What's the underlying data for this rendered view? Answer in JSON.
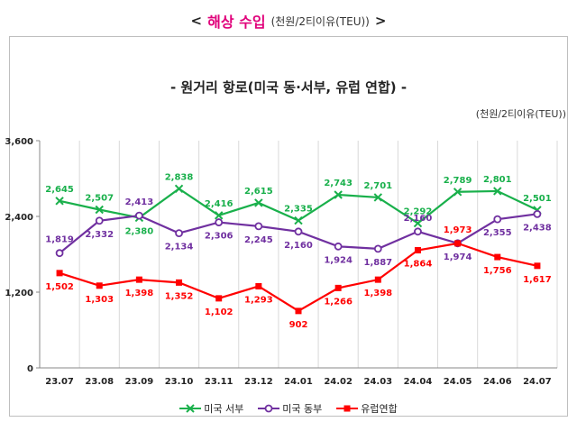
{
  "header": {
    "left_arrow": "<",
    "title": "해상 수입",
    "unit": "(천원/2티이유(TEU))",
    "right_arrow": ">"
  },
  "chart_data": {
    "type": "line",
    "title": "- 원거리 항로(미국 동·서부, 유럽 연합) -",
    "unit_label": "(천원/2티이유(TEU))",
    "categories": [
      "23.07",
      "23.08",
      "23.09",
      "23.10",
      "23.11",
      "23.12",
      "24.01",
      "24.02",
      "24.03",
      "24.04",
      "24.05",
      "24.06",
      "24.07"
    ],
    "y_ticks": [
      "0",
      "1,200",
      "2,400",
      "3,600"
    ],
    "ylim": [
      0,
      3600
    ],
    "grid": "vertical",
    "legend_position": "bottom",
    "series": [
      {
        "name": "미국 서부",
        "color": "#19b04b",
        "marker": "x",
        "values": [
          2645,
          2507,
          2380,
          2838,
          2416,
          2615,
          2335,
          2743,
          2701,
          2292,
          2789,
          2801,
          2501
        ],
        "labels": [
          "2,645",
          "2,507",
          "2,380",
          "2,838",
          "2,416",
          "2,615",
          "2,335",
          "2,743",
          "2,701",
          "2,292",
          "2,789",
          "2,801",
          "2,501"
        ]
      },
      {
        "name": "미국 동부",
        "color": "#7030a0",
        "marker": "circle",
        "values": [
          1819,
          2332,
          2413,
          2134,
          2306,
          2245,
          2160,
          1924,
          1887,
          2160,
          1974,
          2355,
          2438
        ],
        "labels": [
          "1,819",
          "2,332",
          "2,413",
          "2,134",
          "2,306",
          "2,245",
          "2,160",
          "1,924",
          "1,887",
          "2,160",
          "1,974",
          "2,355",
          "2,438"
        ]
      },
      {
        "name": "유럽연합",
        "color": "#ff0000",
        "marker": "square",
        "values": [
          1502,
          1303,
          1398,
          1352,
          1102,
          1293,
          902,
          1266,
          1398,
          1864,
          1973,
          1756,
          1617
        ],
        "labels": [
          "1,502",
          "1,303",
          "1,398",
          "1,352",
          "1,102",
          "1,293",
          "902",
          "1,266",
          "1,398",
          "1,864",
          "1,973",
          "1,756",
          "1,617"
        ]
      }
    ]
  }
}
